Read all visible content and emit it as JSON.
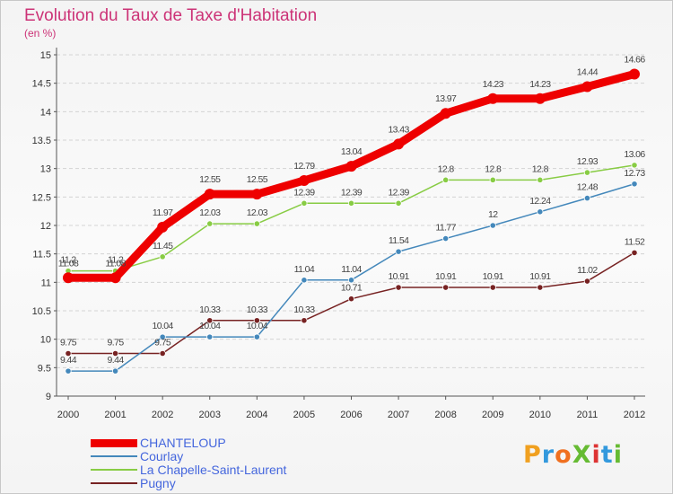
{
  "title": "Evolution du Taux de Taxe d'Habitation",
  "subtitle": "(en %)",
  "logo_text": "ProXiti",
  "colors": {
    "title": "#cc3377",
    "legend_text": "#4466dd",
    "grid": "#d0d0d0",
    "axis": "#444444"
  },
  "chart_data": {
    "type": "line",
    "title": "Evolution du Taux de Taxe d'Habitation",
    "ylabel": "(en %)",
    "ylim": [
      9,
      15
    ],
    "yticks": [
      9,
      9.5,
      10,
      10.5,
      11,
      11.5,
      12,
      12.5,
      13,
      13.5,
      14,
      14.5,
      15
    ],
    "x": [
      "2000",
      "2001",
      "2002",
      "2003",
      "2004",
      "2005",
      "2006",
      "2007",
      "2008",
      "2009",
      "2010",
      "2011",
      "2012"
    ],
    "grid": true,
    "legend": "bottom-left",
    "series": [
      {
        "name": "CHANTELOUP",
        "color": "#ee0000",
        "values": [
          11.08,
          11.08,
          11.97,
          12.55,
          12.55,
          12.79,
          13.04,
          13.43,
          13.97,
          14.23,
          14.23,
          14.44,
          14.66
        ],
        "labels": [
          "11.08",
          "11.08",
          "11.97",
          "12.55",
          "12.55",
          "12.79",
          "13.04",
          "13.43",
          "13.97",
          "14.23",
          "14.23",
          "14.44",
          "14.66"
        ]
      },
      {
        "name": "Courlay",
        "color": "#4488bb",
        "values": [
          9.44,
          9.44,
          10.04,
          10.04,
          10.04,
          11.04,
          11.04,
          11.54,
          11.77,
          12,
          12.24,
          12.48,
          12.73
        ],
        "labels": [
          "9.44",
          "9.44",
          "10.04",
          "10.04",
          "10.04",
          "11.04",
          "11.04",
          "11.54",
          "11.77",
          "12",
          "12.24",
          "12.48",
          "12.73"
        ]
      },
      {
        "name": "La Chapelle-Saint-Laurent",
        "color": "#88cc44",
        "values": [
          11.2,
          11.2,
          11.45,
          12.03,
          12.03,
          12.39,
          12.39,
          12.39,
          12.8,
          12.8,
          12.8,
          12.93,
          13.06
        ],
        "labels": [
          "11.2",
          "11.2",
          "11.45",
          "12.03",
          "12.03",
          "12.39",
          "12.39",
          "12.39",
          "12.8",
          "12.8",
          "12.8",
          "12.93",
          "13.06"
        ]
      },
      {
        "name": "Pugny",
        "color": "#772222",
        "values": [
          9.75,
          9.75,
          9.75,
          10.33,
          10.33,
          10.33,
          10.71,
          10.91,
          10.91,
          10.91,
          10.91,
          11.02,
          11.52
        ],
        "labels": [
          "9.75",
          "9.75",
          "9.75",
          "10.33",
          "10.33",
          "10.33",
          "10.71",
          "10.91",
          "10.91",
          "10.91",
          "10.91",
          "11.02",
          "11.52"
        ]
      }
    ]
  }
}
